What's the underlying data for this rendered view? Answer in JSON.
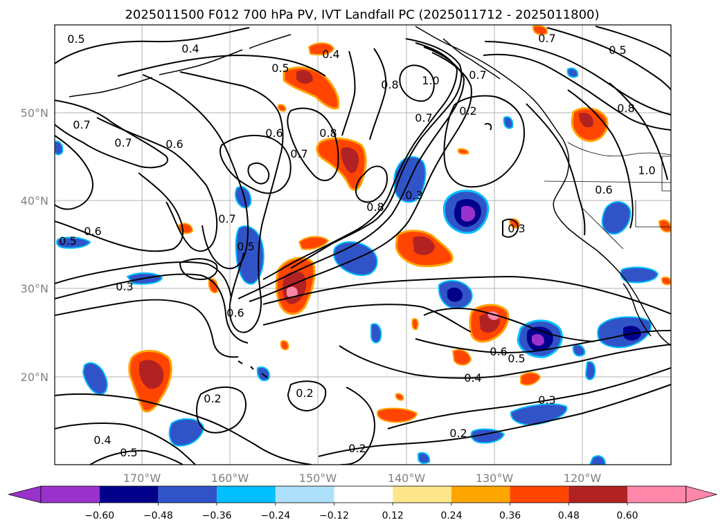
{
  "title": "2025011500 F012 700 hPa PV, IVT Landfall PC (2025011712 - 2025011800)",
  "map": {
    "lon_labels": [
      "170°W",
      "160°W",
      "150°W",
      "140°W",
      "130°W",
      "120°W"
    ],
    "lat_labels": [
      "50°N",
      "40°N",
      "30°N",
      "20°N"
    ],
    "contour_labels": [
      "0.5",
      "0.4",
      "0.5",
      "0.4",
      "0.7",
      "0.5",
      "0.7",
      "0.5",
      "0.7",
      "0.7",
      "0.6",
      "0.6",
      "0.7",
      "0.8",
      "0.8",
      "1.0",
      "0.7",
      "0.2",
      "0.8",
      "0.8",
      "1.0",
      "0.6",
      "0.6",
      "0.3",
      "0.7",
      "0.5",
      "0.3",
      "0.6",
      "0.3",
      "0.6",
      "0.5",
      "0.4",
      "0.2",
      "0.2",
      "0.3",
      "0.2",
      "0.2",
      "0.4",
      "0.5"
    ],
    "shading_colors": {
      "neg_extreme": "#9932cc",
      "neg5": "#00008b",
      "neg4": "#3054c8",
      "neg3": "#00bfff",
      "neg2": "#ade0fa",
      "pos2": "#fde68a",
      "pos3": "#ffa500",
      "pos4": "#ff4500",
      "pos5": "#b22222",
      "pos_extreme": "#ff88aa"
    }
  },
  "colorbar": {
    "ticks": [
      "−0.60",
      "−0.48",
      "−0.36",
      "−0.24",
      "−0.12",
      "0.12",
      "0.24",
      "0.36",
      "0.48",
      "0.60"
    ],
    "colors": [
      "#9932cc",
      "#00008b",
      "#3054c8",
      "#00bfff",
      "#ade0fa",
      "#ffffff",
      "#fde68a",
      "#ffa500",
      "#ff4500",
      "#b22222",
      "#ff88aa"
    ]
  }
}
